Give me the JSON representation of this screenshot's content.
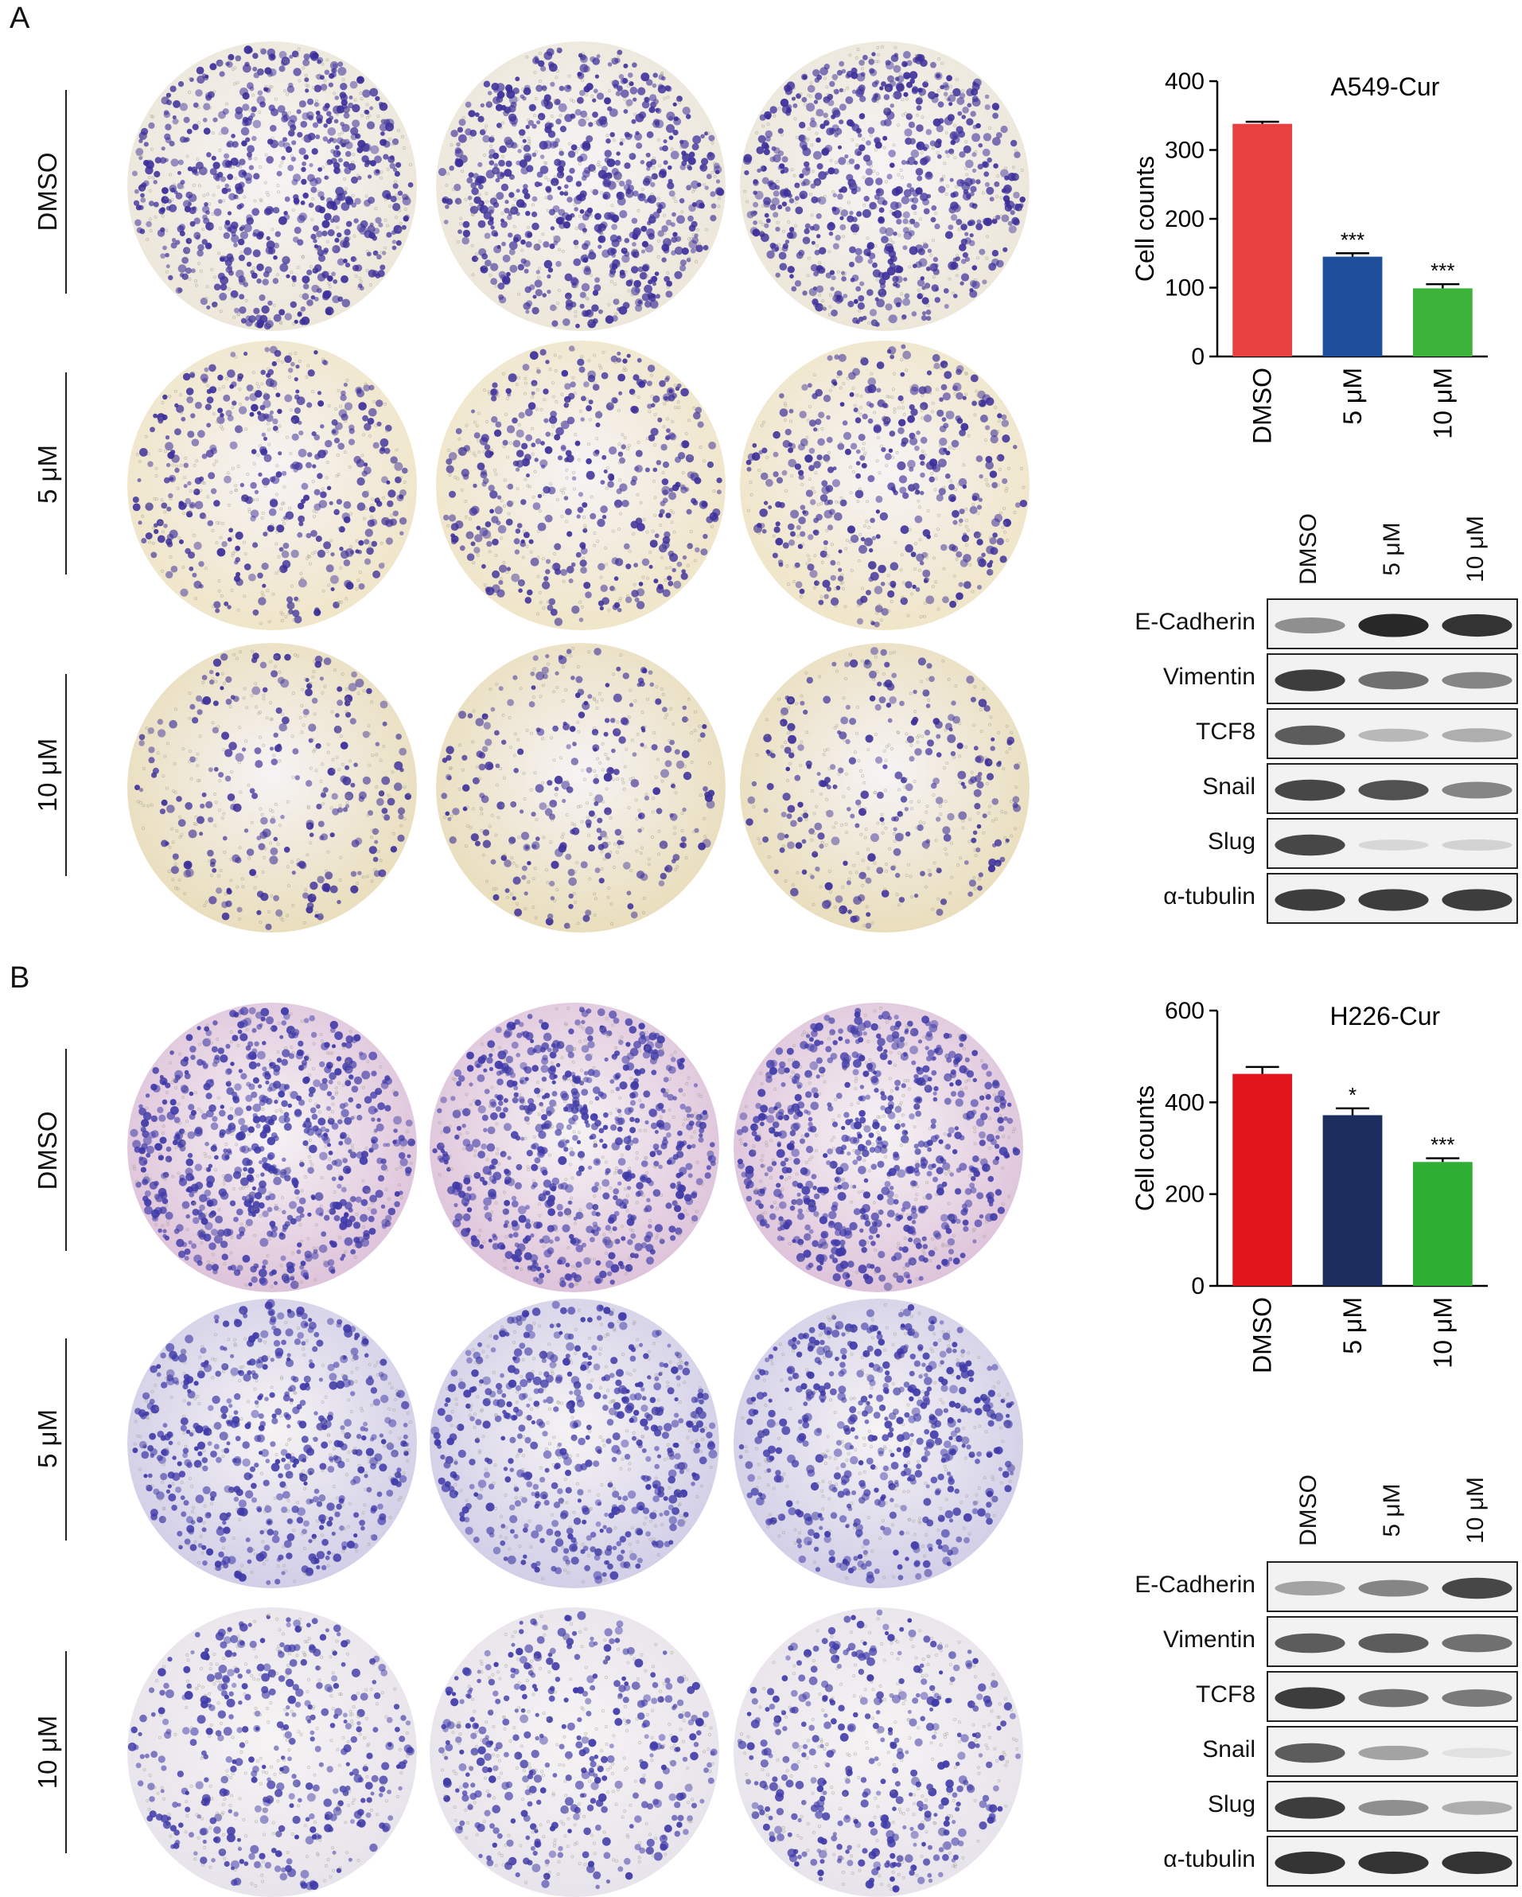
{
  "panels": [
    {
      "letter": "A",
      "dish_style": {
        "bg_center": "#f4f0ee",
        "bg_edge": "#e9e2c7",
        "cell_color": "#3c2f9a",
        "density": "medium"
      },
      "dish_rows": [
        {
          "label": "DMSO",
          "density": 1.0,
          "bg_edge": "#ece6d7"
        },
        {
          "label": "5 μM",
          "density": 0.55,
          "bg_edge": "#efe4c4"
        },
        {
          "label": "10 μM",
          "density": 0.35,
          "bg_edge": "#e8dcb7"
        }
      ],
      "blot": {
        "lanes": [
          "DMSO",
          "5 μM",
          "10 μM"
        ],
        "rows": [
          {
            "label": "E-Cadherin",
            "intensity": [
              0.45,
              0.95,
              0.9
            ]
          },
          {
            "label": "Vimentin",
            "intensity": [
              0.85,
              0.6,
              0.5
            ]
          },
          {
            "label": "TCF8",
            "intensity": [
              0.7,
              0.25,
              0.3
            ]
          },
          {
            "label": "Snail",
            "intensity": [
              0.8,
              0.75,
              0.5
            ]
          },
          {
            "label": "Slug",
            "intensity": [
              0.8,
              0.1,
              0.12
            ]
          },
          {
            "label": "α-tubulin",
            "intensity": [
              0.85,
              0.85,
              0.85
            ]
          }
        ]
      }
    },
    {
      "letter": "B",
      "dish_style": {
        "cell_color": "#3f3aa8"
      },
      "dish_rows": [
        {
          "label": "DMSO",
          "density": 1.0,
          "bg_edge": "#dcbfd8"
        },
        {
          "label": "5 μM",
          "density": 0.75,
          "bg_edge": "#cfcbe6"
        },
        {
          "label": "10 μM",
          "density": 0.55,
          "bg_edge": "#e6e2ea"
        }
      ],
      "blot": {
        "lanes": [
          "DMSO",
          "5 μM",
          "10 μM"
        ],
        "rows": [
          {
            "label": "E-Cadherin",
            "intensity": [
              0.35,
              0.5,
              0.8
            ]
          },
          {
            "label": "Vimentin",
            "intensity": [
              0.7,
              0.7,
              0.6
            ]
          },
          {
            "label": "TCF8",
            "intensity": [
              0.85,
              0.6,
              0.55
            ]
          },
          {
            "label": "Snail",
            "intensity": [
              0.7,
              0.35,
              0.05
            ]
          },
          {
            "label": "Slug",
            "intensity": [
              0.85,
              0.45,
              0.3
            ]
          },
          {
            "label": "α-tubulin",
            "intensity": [
              0.9,
              0.9,
              0.9
            ]
          }
        ]
      }
    }
  ],
  "chart_data": [
    {
      "type": "bar",
      "title": "A549-Cur",
      "ylabel": "Cell counts",
      "xlabel": "",
      "categories": [
        "DMSO",
        "5 μM",
        "10 μM"
      ],
      "values": [
        338,
        145,
        99
      ],
      "errors": [
        3,
        5,
        6
      ],
      "significance": [
        "",
        "***",
        "***"
      ],
      "colors": [
        "#e84040",
        "#1f4e9c",
        "#3cb43c"
      ],
      "ylim": [
        0,
        400
      ],
      "yticks": [
        0,
        100,
        200,
        300,
        400
      ],
      "grid": false
    },
    {
      "type": "bar",
      "title": "H226-Cur",
      "ylabel": "Cell counts",
      "xlabel": "",
      "categories": [
        "DMSO",
        "5 μM",
        "10 μM"
      ],
      "values": [
        462,
        372,
        270
      ],
      "errors": [
        15,
        15,
        8
      ],
      "significance": [
        "",
        "*",
        "***"
      ],
      "colors": [
        "#e2141c",
        "#1c2d5e",
        "#2eae33"
      ],
      "ylim": [
        0,
        600
      ],
      "yticks": [
        0,
        200,
        400,
        600
      ],
      "grid": false
    }
  ]
}
